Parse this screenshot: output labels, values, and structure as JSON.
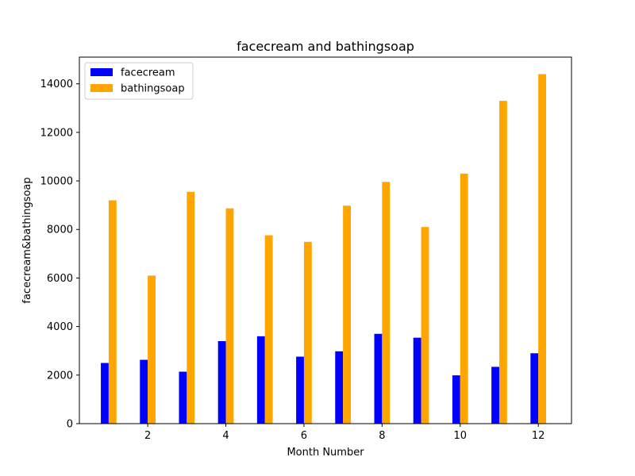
{
  "chart_data": {
    "type": "bar",
    "title": "facecream and bathingsoap",
    "xlabel": "Month Number",
    "ylabel": "facecream&bathingsoap",
    "x": [
      1,
      2,
      3,
      4,
      5,
      6,
      7,
      8,
      9,
      10,
      11,
      12
    ],
    "xlim": [
      0.25,
      12.85
    ],
    "ylim": [
      0,
      15100
    ],
    "xticks": [
      2,
      4,
      6,
      8,
      10,
      12
    ],
    "yticks": [
      0,
      2000,
      4000,
      6000,
      8000,
      10000,
      12000,
      14000
    ],
    "grid": false,
    "legend_position": "top-left",
    "series": [
      {
        "name": "facecream",
        "color": "#0000ff",
        "values": [
          2500,
          2630,
          2140,
          3400,
          3600,
          2760,
          2980,
          3700,
          3540,
          1990,
          2340,
          2900
        ]
      },
      {
        "name": "bathingsoap",
        "color": "#ffa500",
        "values": [
          9200,
          6100,
          9550,
          8870,
          7760,
          7490,
          8980,
          9960,
          8100,
          10300,
          13300,
          14400
        ]
      }
    ]
  }
}
